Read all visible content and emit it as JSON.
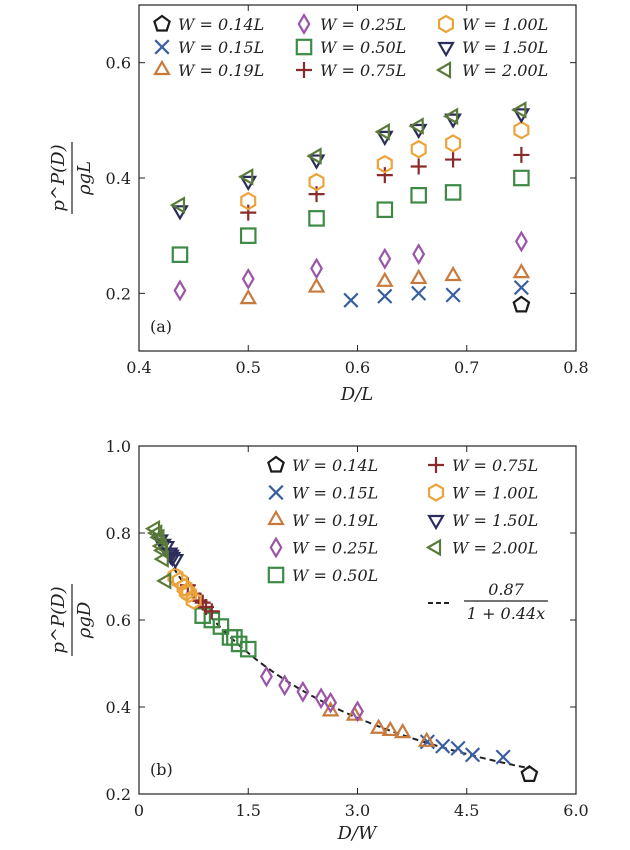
{
  "chart_data": [
    {
      "type": "scatter",
      "panel_label": "(a)",
      "xlabel": "D/L",
      "ylabel_num": "p^P(D)",
      "ylabel_den": "ρgL",
      "xlim": [
        0.4,
        0.8
      ],
      "ylim": [
        0.1,
        0.7
      ],
      "xticks": [
        0.4,
        0.5,
        0.6,
        0.7,
        0.8
      ],
      "xtick_labels": [
        "0.4",
        "0.5",
        "0.6",
        "0.7",
        "0.8"
      ],
      "yticks": [
        0.2,
        0.4,
        0.6
      ],
      "ytick_labels": [
        "0.2",
        "0.4",
        "0.6"
      ],
      "legend_position": "top",
      "series": [
        {
          "name": "W = 0.14L",
          "marker": "pentagon",
          "color": "#1a1a1a",
          "points": [
            [
              0.75,
              0.18
            ]
          ]
        },
        {
          "name": "W = 0.15L",
          "marker": "x",
          "color": "#3a5fa0",
          "points": [
            [
              0.594,
              0.188
            ],
            [
              0.625,
              0.195
            ],
            [
              0.656,
              0.2
            ],
            [
              0.6875,
              0.197
            ],
            [
              0.75,
              0.21
            ]
          ]
        },
        {
          "name": "W = 0.19L",
          "marker": "triangle-up",
          "color": "#c87a3c",
          "points": [
            [
              0.5,
              0.19
            ],
            [
              0.5625,
              0.21
            ],
            [
              0.625,
              0.22
            ],
            [
              0.656,
              0.225
            ],
            [
              0.6875,
              0.23
            ],
            [
              0.75,
              0.235
            ]
          ]
        },
        {
          "name": "W = 0.25L",
          "marker": "diamond",
          "color": "#9b55a8",
          "points": [
            [
              0.4375,
              0.205
            ],
            [
              0.5,
              0.225
            ],
            [
              0.5625,
              0.243
            ],
            [
              0.625,
              0.26
            ],
            [
              0.656,
              0.268
            ],
            [
              0.75,
              0.29
            ]
          ]
        },
        {
          "name": "W = 0.50L",
          "marker": "square",
          "color": "#3d8a45",
          "points": [
            [
              0.4375,
              0.267
            ],
            [
              0.5,
              0.3
            ],
            [
              0.5625,
              0.33
            ],
            [
              0.625,
              0.345
            ],
            [
              0.656,
              0.37
            ],
            [
              0.6875,
              0.375
            ],
            [
              0.75,
              0.4
            ]
          ]
        },
        {
          "name": "W = 0.75L",
          "marker": "plus",
          "color": "#8a2a2a",
          "points": [
            [
              0.5,
              0.34
            ],
            [
              0.5625,
              0.372
            ],
            [
              0.625,
              0.405
            ],
            [
              0.656,
              0.42
            ],
            [
              0.6875,
              0.432
            ],
            [
              0.75,
              0.44
            ]
          ]
        },
        {
          "name": "W = 1.00L",
          "marker": "hexagon",
          "color": "#eda33c",
          "points": [
            [
              0.5,
              0.36
            ],
            [
              0.5625,
              0.393
            ],
            [
              0.625,
              0.424
            ],
            [
              0.656,
              0.45
            ],
            [
              0.6875,
              0.46
            ],
            [
              0.75,
              0.483
            ]
          ]
        },
        {
          "name": "W = 1.50L",
          "marker": "triangle-down",
          "color": "#2b2d5a",
          "points": [
            [
              0.4375,
              0.344
            ],
            [
              0.5,
              0.395
            ],
            [
              0.5625,
              0.432
            ],
            [
              0.625,
              0.473
            ],
            [
              0.656,
              0.485
            ],
            [
              0.6875,
              0.503
            ],
            [
              0.75,
              0.512
            ]
          ]
        },
        {
          "name": "W = 2.00L",
          "marker": "triangle-left",
          "color": "#5a7a3a",
          "points": [
            [
              0.4375,
              0.353
            ],
            [
              0.5,
              0.402
            ],
            [
              0.5625,
              0.438
            ],
            [
              0.625,
              0.48
            ],
            [
              0.656,
              0.49
            ],
            [
              0.6875,
              0.507
            ],
            [
              0.75,
              0.518
            ]
          ]
        }
      ]
    },
    {
      "type": "scatter",
      "panel_label": "(b)",
      "xlabel": "D/W",
      "ylabel_num": "p^P(D)",
      "ylabel_den": "ρgD",
      "xlim": [
        0,
        6.0
      ],
      "ylim": [
        0.2,
        1.0
      ],
      "xticks": [
        0,
        1.5,
        3.0,
        4.5,
        6.0
      ],
      "xtick_labels": [
        "0",
        "1.5",
        "3.0",
        "4.5",
        "6.0"
      ],
      "yticks": [
        0.2,
        0.4,
        0.6,
        0.8,
        1.0
      ],
      "ytick_labels": [
        "0.2",
        "0.4",
        "0.6",
        "0.8",
        "1.0"
      ],
      "legend_position": "top-right",
      "fit_label_num": "0.87",
      "fit_label_den": "1 + 0.44x",
      "fit": {
        "a": 0.87,
        "b": 0.44,
        "x_from": 0.2,
        "x_to": 5.36
      },
      "series": [
        {
          "name": "W = 0.14L",
          "marker": "pentagon",
          "color": "#1a1a1a",
          "points": [
            [
              5.36,
              0.245
            ]
          ]
        },
        {
          "name": "W = 0.15L",
          "marker": "x",
          "color": "#3a5fa0",
          "points": [
            [
              3.96,
              0.32
            ],
            [
              4.17,
              0.31
            ],
            [
              4.38,
              0.305
            ],
            [
              4.58,
              0.29
            ],
            [
              5.0,
              0.285
            ]
          ]
        },
        {
          "name": "W = 0.19L",
          "marker": "triangle-up",
          "color": "#c87a3c",
          "points": [
            [
              2.63,
              0.39
            ],
            [
              2.96,
              0.38
            ],
            [
              3.29,
              0.35
            ],
            [
              3.45,
              0.345
            ],
            [
              3.62,
              0.34
            ],
            [
              3.95,
              0.32
            ]
          ]
        },
        {
          "name": "W = 0.25L",
          "marker": "diamond",
          "color": "#9b55a8",
          "points": [
            [
              1.75,
              0.47
            ],
            [
              2.0,
              0.45
            ],
            [
              2.25,
              0.435
            ],
            [
              2.5,
              0.42
            ],
            [
              2.63,
              0.41
            ],
            [
              3.0,
              0.39
            ]
          ]
        },
        {
          "name": "W = 0.50L",
          "marker": "square",
          "color": "#3d8a45",
          "points": [
            [
              0.875,
              0.61
            ],
            [
              1.0,
              0.6
            ],
            [
              1.125,
              0.585
            ],
            [
              1.25,
              0.56
            ],
            [
              1.31,
              0.56
            ],
            [
              1.375,
              0.545
            ],
            [
              1.5,
              0.533
            ]
          ]
        },
        {
          "name": "W = 0.75L",
          "marker": "plus",
          "color": "#8a2a2a",
          "points": [
            [
              0.67,
              0.68
            ],
            [
              0.75,
              0.66
            ],
            [
              0.83,
              0.645
            ],
            [
              0.875,
              0.64
            ],
            [
              0.92,
              0.63
            ],
            [
              1.0,
              0.62
            ]
          ]
        },
        {
          "name": "W = 1.00L",
          "marker": "hexagon",
          "color": "#eda33c",
          "points": [
            [
              0.5,
              0.7
            ],
            [
              0.5625,
              0.69
            ],
            [
              0.625,
              0.675
            ],
            [
              0.656,
              0.665
            ],
            [
              0.6875,
              0.66
            ],
            [
              0.75,
              0.645
            ]
          ]
        },
        {
          "name": "W = 1.50L",
          "marker": "triangle-down",
          "color": "#2b2d5a",
          "points": [
            [
              0.29,
              0.785
            ],
            [
              0.33,
              0.775
            ],
            [
              0.375,
              0.77
            ],
            [
              0.42,
              0.755
            ],
            [
              0.4375,
              0.75
            ],
            [
              0.458,
              0.745
            ],
            [
              0.5,
              0.74
            ]
          ]
        },
        {
          "name": "W = 2.00L",
          "marker": "triangle-left",
          "color": "#5a7a3a",
          "points": [
            [
              0.22,
              0.81
            ],
            [
              0.25,
              0.8
            ],
            [
              0.28,
              0.79
            ],
            [
              0.3125,
              0.77
            ],
            [
              0.33,
              0.76
            ],
            [
              0.34,
              0.74
            ],
            [
              0.375,
              0.69
            ]
          ]
        }
      ]
    }
  ]
}
